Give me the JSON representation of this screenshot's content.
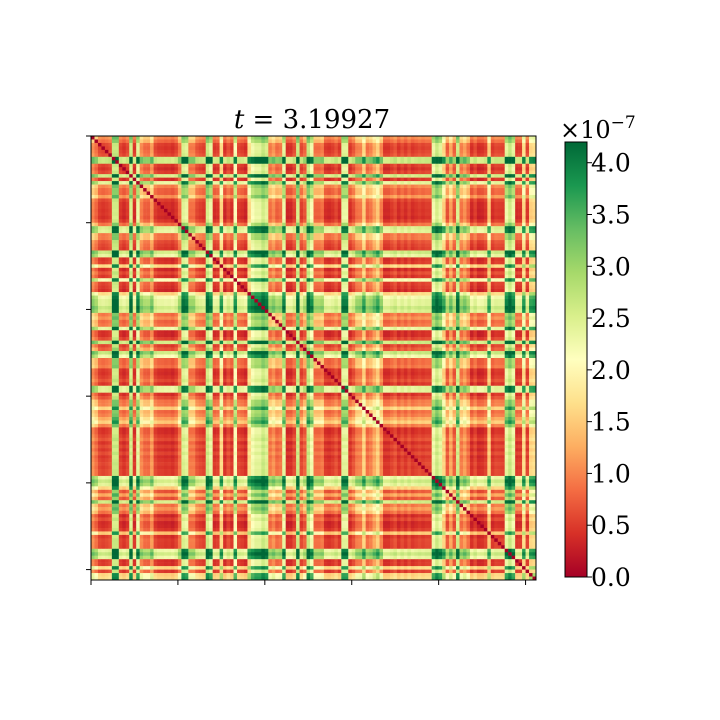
{
  "chart_data": {
    "type": "heatmap",
    "title": "t = 3.19927",
    "title_var": "t",
    "title_rest": " = 3.19927",
    "xlabel": "",
    "ylabel": "",
    "matrix_size": 128,
    "x_ticks": 6,
    "y_ticks": 6,
    "colormap": "RdYlGn",
    "colormap_stops": [
      "#a50026",
      "#d73027",
      "#f46d43",
      "#fdae61",
      "#fee08b",
      "#ffffbf",
      "#d9ef8b",
      "#a6d96a",
      "#66bd63",
      "#1a9850",
      "#006837"
    ],
    "colorbar": {
      "min": 0.0,
      "max": 4.2,
      "multiplier_base": "×10",
      "multiplier_exp": "−7",
      "ticks": [
        {
          "value": 0.0,
          "label": "0.0"
        },
        {
          "value": 0.5,
          "label": "0.5"
        },
        {
          "value": 1.0,
          "label": "1.0"
        },
        {
          "value": 1.5,
          "label": "1.5"
        },
        {
          "value": 2.0,
          "label": "2.0"
        },
        {
          "value": 2.5,
          "label": "2.5"
        },
        {
          "value": 3.0,
          "label": "3.0"
        },
        {
          "value": 3.5,
          "label": "3.5"
        },
        {
          "value": 4.0,
          "label": "4.0"
        }
      ]
    },
    "diagonal_value": 0.0,
    "low_columns": [
      [
        2,
        12
      ],
      [
        18,
        24
      ],
      [
        30,
        44
      ],
      [
        55,
        60
      ],
      [
        67,
        75
      ],
      [
        84,
        98
      ],
      [
        109,
        118
      ],
      [
        122,
        126
      ]
    ],
    "high_columns": [
      [
        6,
        7
      ],
      [
        26,
        27
      ],
      [
        33,
        34
      ],
      [
        46,
        49
      ],
      [
        62,
        63
      ],
      [
        72,
        73
      ],
      [
        98,
        99
      ],
      [
        119,
        120
      ]
    ]
  }
}
